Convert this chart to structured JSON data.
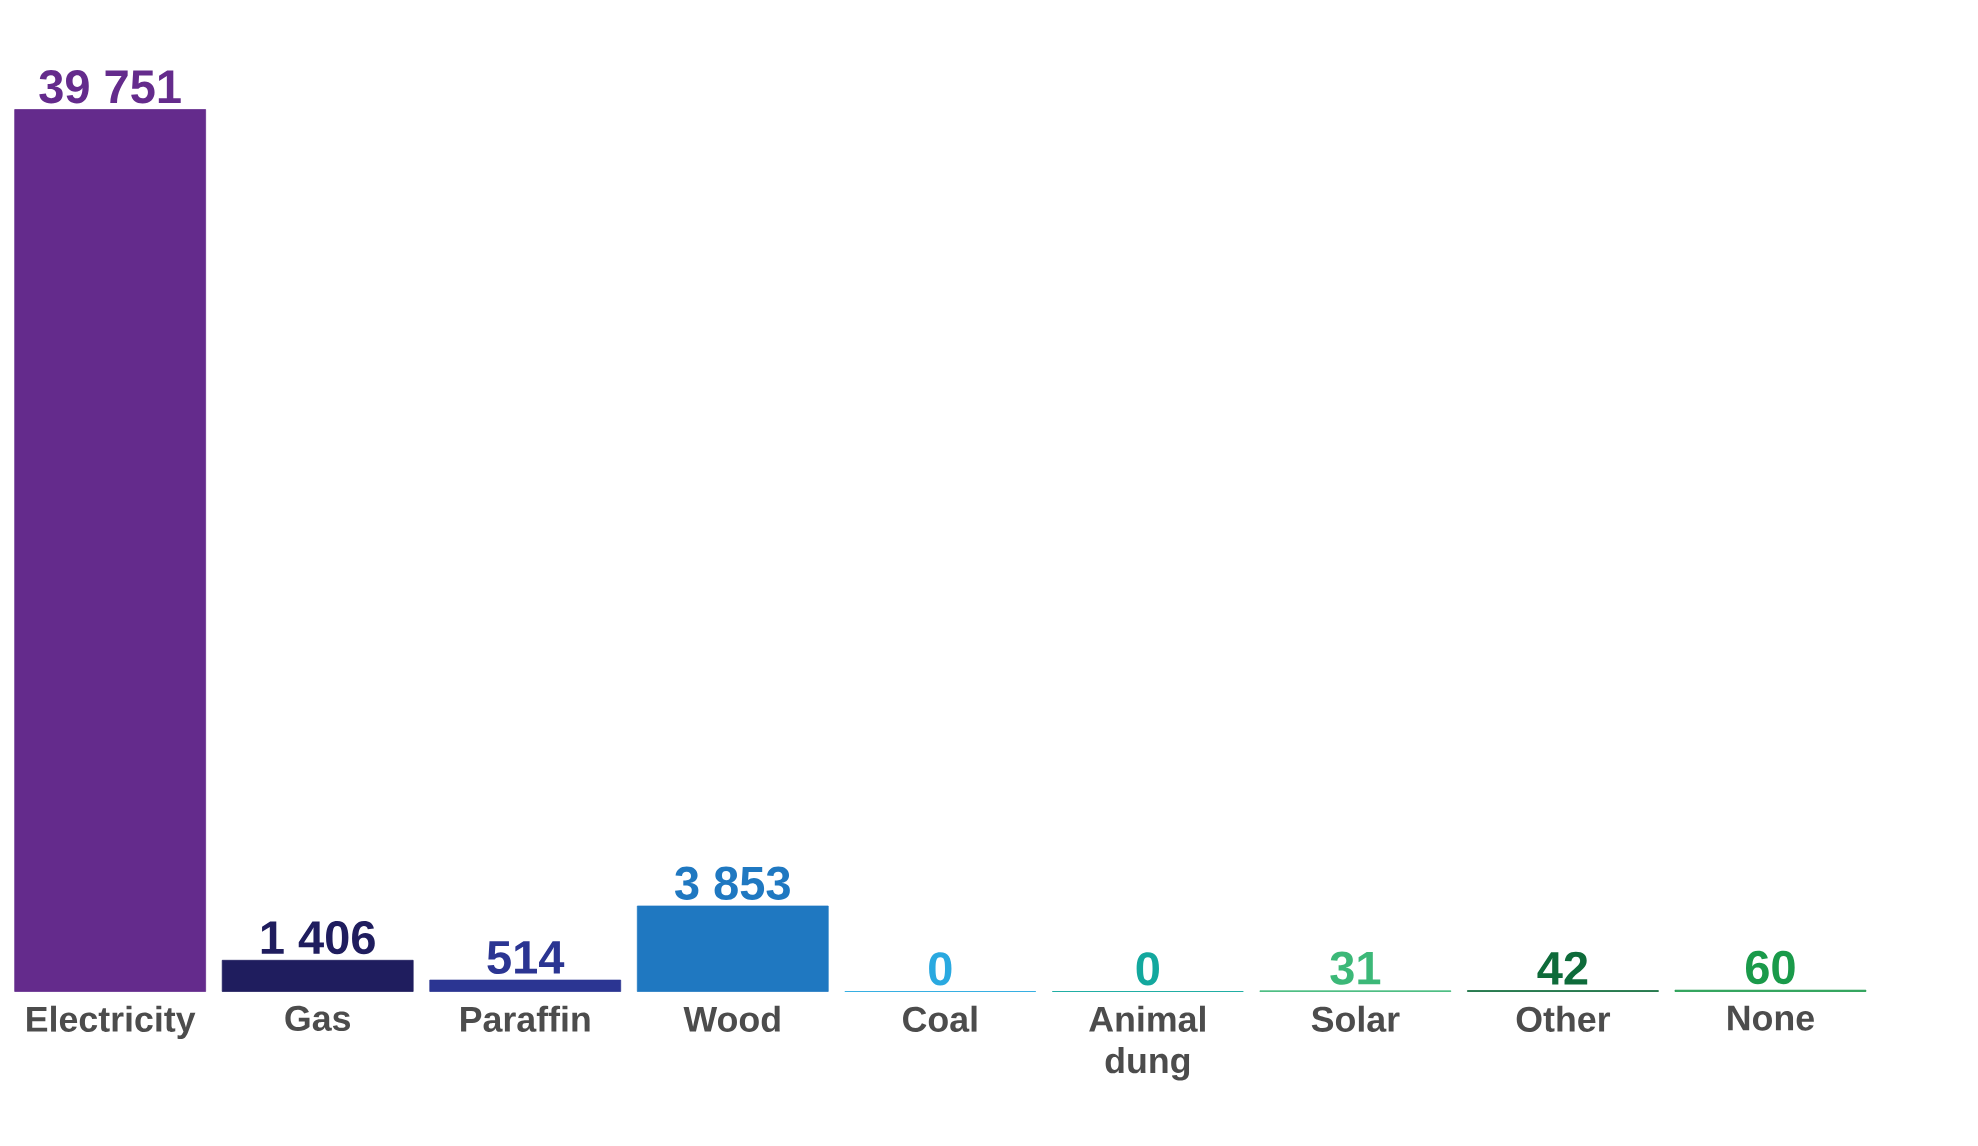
{
  "chart_data": {
    "type": "bar",
    "categories": [
      "Electricity",
      "Gas",
      "Paraffin",
      "Wood",
      "Coal",
      "Animal dung",
      "Solar",
      "Other",
      "None"
    ],
    "values": [
      39751,
      1406,
      514,
      3853,
      0,
      0,
      31,
      42,
      60
    ],
    "value_labels": [
      "39 751",
      "1 406",
      "514",
      "3 853",
      "0",
      "0",
      "31",
      "42",
      "60"
    ],
    "colors": [
      "#642b8c",
      "#1f1d5e",
      "#2b3592",
      "#1f78c1",
      "#2aa9e0",
      "#13a89e",
      "#3cb878",
      "#0e6b3a",
      "#1a9a4a"
    ]
  }
}
